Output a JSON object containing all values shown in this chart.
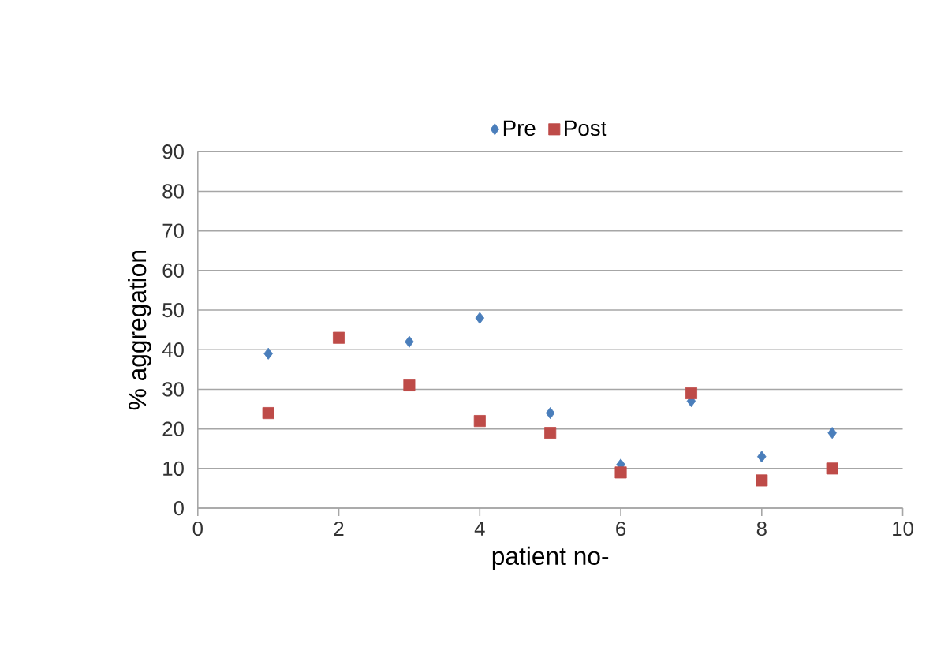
{
  "chart_data": {
    "type": "scatter",
    "xlabel": "patient no-",
    "ylabel": "% aggregation",
    "x": [
      1,
      2,
      3,
      4,
      5,
      6,
      7,
      8,
      9
    ],
    "series": [
      {
        "name": "Pre",
        "color": "#4a7ebb",
        "marker": "diamond",
        "values": [
          39,
          null,
          42,
          48,
          24,
          11,
          27,
          13,
          19
        ]
      },
      {
        "name": "Post",
        "color": "#be4b48",
        "marker": "square",
        "values": [
          24,
          43,
          31,
          22,
          19,
          9,
          29,
          7,
          10
        ]
      }
    ],
    "xlim": [
      0,
      10
    ],
    "xticks": [
      0,
      2,
      4,
      6,
      8,
      10
    ],
    "ylim": [
      0,
      90
    ],
    "yticks": [
      0,
      10,
      20,
      30,
      40,
      50,
      60,
      70,
      80,
      90
    ],
    "grid": "y",
    "legend": "top"
  }
}
